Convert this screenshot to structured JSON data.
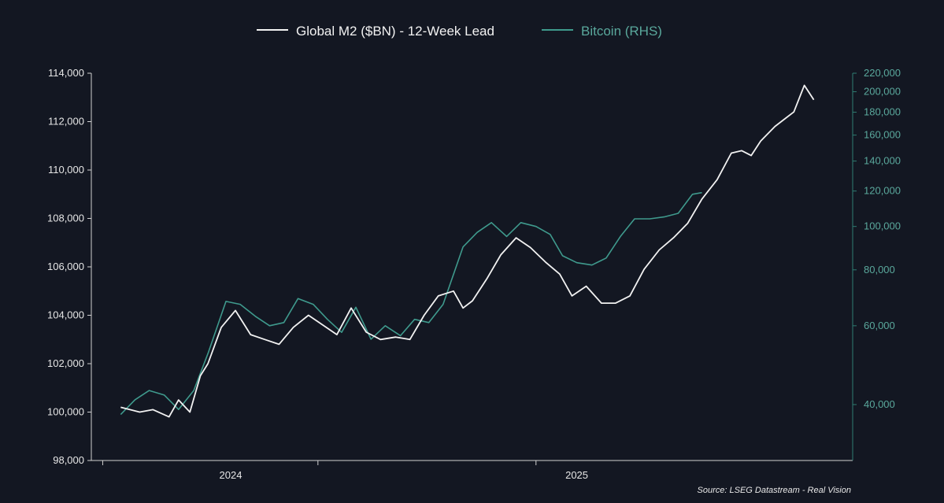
{
  "chart_data": {
    "type": "line",
    "title": "",
    "legend_placement": "top-center",
    "grid": false,
    "colors": {
      "background": "#131722",
      "axis": "#d0d0d0",
      "m2": "#f2f2f2",
      "btc": "#3f9a8d",
      "rhs_text": "#5aa89c"
    },
    "x_axis": {
      "tick_labels": [
        "2024",
        "2025"
      ]
    },
    "y_left": {
      "scale": "linear",
      "range": [
        98000,
        114000
      ],
      "tick_labels": [
        "114,000",
        "112,000",
        "110,000",
        "108,000",
        "106,000",
        "104,000",
        "102,000",
        "100,000",
        "98,000"
      ],
      "tick_values": [
        114000,
        112000,
        110000,
        108000,
        106000,
        104000,
        102000,
        100000,
        98000
      ]
    },
    "y_right": {
      "scale": "log",
      "range": [
        30000,
        220000
      ],
      "tick_labels": [
        "220,000",
        "200,000",
        "180,000",
        "160,000",
        "140,000",
        "120,000",
        "100,000",
        "80,000",
        "60,000",
        "40,000"
      ],
      "tick_values": [
        220000,
        200000,
        180000,
        160000,
        140000,
        120000,
        100000,
        80000,
        60000,
        40000
      ]
    },
    "series": [
      {
        "name": "Global M2 ($BN) - 12-Week Lead",
        "axis": "left",
        "x": [
          "2023-11-20",
          "2023-12-10",
          "2023-12-24",
          "2024-01-10",
          "2024-01-20",
          "2024-02-01",
          "2024-02-12",
          "2024-02-20",
          "2024-03-05",
          "2024-03-20",
          "2024-04-05",
          "2024-04-20",
          "2024-05-05",
          "2024-05-20",
          "2024-06-05",
          "2024-06-20",
          "2024-07-05",
          "2024-07-20",
          "2024-08-05",
          "2024-08-20",
          "2024-09-05",
          "2024-09-20",
          "2024-10-05",
          "2024-10-20",
          "2024-11-05",
          "2024-11-15",
          "2024-11-25",
          "2024-12-10",
          "2024-12-25",
          "2025-01-10",
          "2025-01-25",
          "2025-02-10",
          "2025-02-25",
          "2025-03-10",
          "2025-03-25",
          "2025-04-10",
          "2025-04-25",
          "2025-05-10",
          "2025-05-25",
          "2025-06-10",
          "2025-06-25",
          "2025-07-10",
          "2025-07-25",
          "2025-08-10",
          "2025-08-25",
          "2025-09-05",
          "2025-09-15",
          "2025-09-25",
          "2025-10-10",
          "2025-10-20",
          "2025-10-30",
          "2025-11-10",
          "2025-11-20"
        ],
        "y": [
          100200,
          100000,
          100100,
          99800,
          100500,
          100000,
          101500,
          102000,
          103500,
          104200,
          103200,
          103000,
          102800,
          103500,
          104000,
          103600,
          103200,
          104300,
          103300,
          103000,
          103100,
          103000,
          104000,
          104800,
          105000,
          104300,
          104600,
          105500,
          106500,
          107200,
          106800,
          106200,
          105700,
          104800,
          105200,
          104500,
          104500,
          104800,
          105900,
          106700,
          107200,
          107800,
          108800,
          109600,
          110700,
          110800,
          110600,
          111200,
          111800,
          112100,
          112400,
          113500,
          112900
        ]
      },
      {
        "name": "Bitcoin (RHS)",
        "axis": "right",
        "x": [
          "2023-11-20",
          "2023-12-05",
          "2023-12-20",
          "2024-01-05",
          "2024-01-20",
          "2024-02-05",
          "2024-02-20",
          "2024-03-10",
          "2024-03-25",
          "2024-04-10",
          "2024-04-25",
          "2024-05-10",
          "2024-05-25",
          "2024-06-10",
          "2024-06-25",
          "2024-07-10",
          "2024-07-25",
          "2024-08-10",
          "2024-08-25",
          "2024-09-10",
          "2024-09-25",
          "2024-10-10",
          "2024-10-25",
          "2024-11-15",
          "2024-11-30",
          "2024-12-15",
          "2024-12-31",
          "2025-01-15",
          "2025-01-31",
          "2025-02-15",
          "2025-02-28",
          "2025-03-15",
          "2025-03-31",
          "2025-04-15",
          "2025-04-30",
          "2025-05-15",
          "2025-05-31",
          "2025-06-15",
          "2025-06-30",
          "2025-07-15",
          "2025-07-25"
        ],
        "y": [
          38000,
          41000,
          43000,
          42000,
          39000,
          43000,
          52000,
          68000,
          67000,
          63000,
          60000,
          61000,
          69000,
          67000,
          62000,
          58000,
          66000,
          56000,
          60000,
          57000,
          62000,
          61000,
          67000,
          90000,
          97000,
          102000,
          95000,
          102000,
          100000,
          96000,
          86000,
          83000,
          82000,
          85000,
          95000,
          104000,
          104000,
          105000,
          107000,
          118000,
          119000
        ]
      }
    ]
  },
  "source_text": "Source: LSEG Datastream - Real Vision"
}
